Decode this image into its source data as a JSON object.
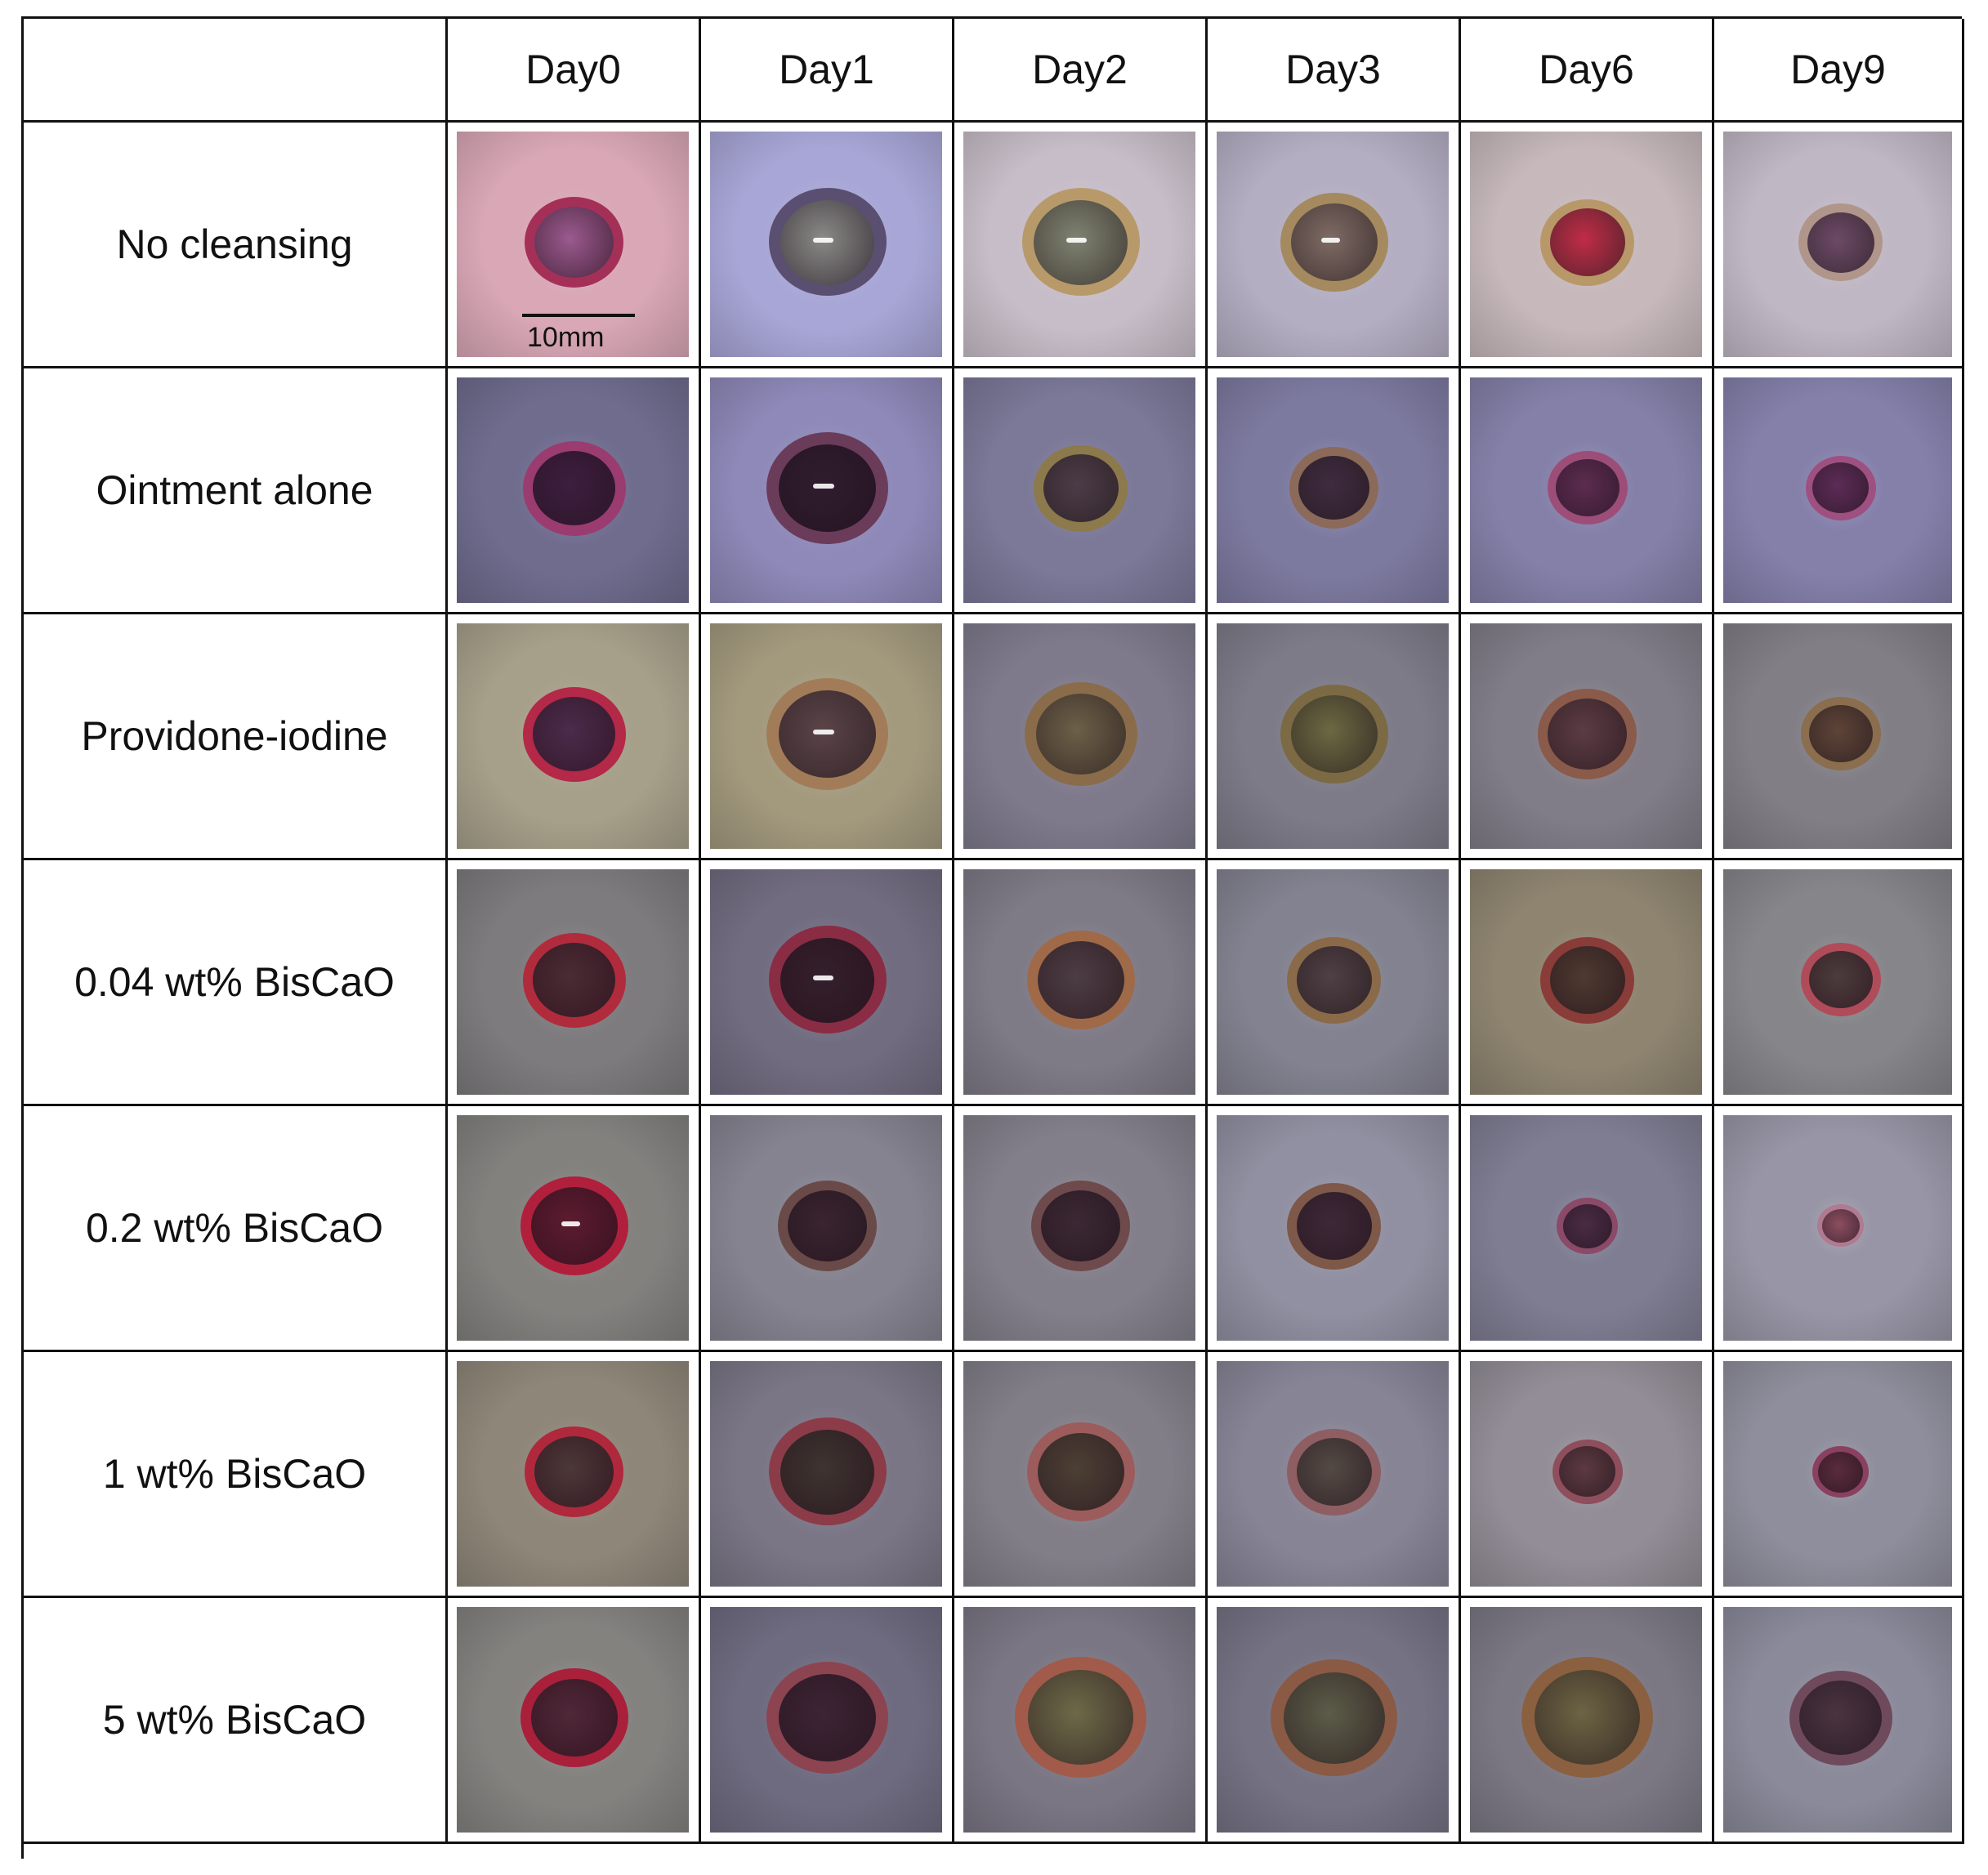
{
  "header": {
    "corner": "",
    "days": [
      "Day0",
      "Day1",
      "Day2",
      "Day3",
      "Day6",
      "Day9"
    ]
  },
  "rows": [
    {
      "label": "No cleansing",
      "photos": [
        {
          "bg": "#d9a7b6",
          "rim": "#a43058",
          "core": "#9a5a8e",
          "gloss": false,
          "size": 0.42
        },
        {
          "bg": "#a8a6d6",
          "rim": "#5a4f70",
          "core": "#8a8a86",
          "gloss": true,
          "size": 0.5
        },
        {
          "bg": "#c7bdc8",
          "rim": "#b89a6a",
          "core": "#7e8370",
          "gloss": true,
          "size": 0.5
        },
        {
          "bg": "#b4aec3",
          "rim": "#a48a5e",
          "core": "#7f6b64",
          "gloss": true,
          "size": 0.46
        },
        {
          "bg": "#c6b8bb",
          "rim": "#b89868",
          "core": "#c02c48",
          "gloss": false,
          "size": 0.4
        },
        {
          "bg": "#c0b7c4",
          "rim": "#b0968a",
          "core": "#6c4a66",
          "gloss": false,
          "size": 0.36
        }
      ]
    },
    {
      "label": "Ointment alone",
      "photos": [
        {
          "bg": "#6f6c8e",
          "rim": "#9a3c70",
          "core": "#3c1e3e",
          "gloss": false,
          "size": 0.44
        },
        {
          "bg": "#8e89b8",
          "rim": "#6a3c5a",
          "core": "#301c2e",
          "gloss": true,
          "size": 0.52
        },
        {
          "bg": "#7b7898",
          "rim": "#8c7a4c",
          "core": "#4c3c48",
          "gloss": false,
          "size": 0.4
        },
        {
          "bg": "#7d7aa0",
          "rim": "#8c6a5a",
          "core": "#3e2c40",
          "gloss": false,
          "size": 0.38
        },
        {
          "bg": "#8480a8",
          "rim": "#9c4e78",
          "core": "#5c2c50",
          "gloss": false,
          "size": 0.34
        },
        {
          "bg": "#8480aa",
          "rim": "#9e5080",
          "core": "#5c2c56",
          "gloss": false,
          "size": 0.3
        }
      ]
    },
    {
      "label": "Providone-iodine",
      "photos": [
        {
          "bg": "#a6a08a",
          "rim": "#b42848",
          "core": "#4a2c4c",
          "gloss": false,
          "size": 0.44
        },
        {
          "bg": "#a39a7e",
          "rim": "#a27c58",
          "core": "#5a4448",
          "gloss": true,
          "size": 0.52
        },
        {
          "bg": "#7e7a8c",
          "rim": "#8a6c4a",
          "core": "#6c6048",
          "gloss": false,
          "size": 0.48
        },
        {
          "bg": "#7d7b88",
          "rim": "#7c6a44",
          "core": "#6c6842",
          "gloss": false,
          "size": 0.46
        },
        {
          "bg": "#817d88",
          "rim": "#8a5a4a",
          "core": "#5c3c44",
          "gloss": false,
          "size": 0.42
        },
        {
          "bg": "#817e86",
          "rim": "#8a6e4e",
          "core": "#5e4438",
          "gloss": false,
          "size": 0.34
        }
      ]
    },
    {
      "label": "0.04 wt% BisCaO",
      "photos": [
        {
          "bg": "#7d7b7d",
          "rim": "#b02c3c",
          "core": "#4a2c34",
          "gloss": false,
          "size": 0.44
        },
        {
          "bg": "#716c80",
          "rim": "#8a2c44",
          "core": "#34202c",
          "gloss": true,
          "size": 0.5
        },
        {
          "bg": "#7e7a86",
          "rim": "#a06a48",
          "core": "#4c3c44",
          "gloss": false,
          "size": 0.46
        },
        {
          "bg": "#838290",
          "rim": "#8a6a48",
          "core": "#4e4044",
          "gloss": false,
          "size": 0.4
        },
        {
          "bg": "#8e8470",
          "rim": "#8a3c38",
          "core": "#4e3a30",
          "gloss": false,
          "size": 0.4
        },
        {
          "bg": "#86858a",
          "rim": "#b04c5a",
          "core": "#4c3c3c",
          "gloss": false,
          "size": 0.34
        }
      ]
    },
    {
      "label": "0.2 wt% BisCaO",
      "photos": [
        {
          "bg": "#83817e",
          "rim": "#b0203c",
          "core": "#5c1c30",
          "gloss": true,
          "size": 0.46
        },
        {
          "bg": "#858390",
          "rim": "#6a4a48",
          "core": "#3a2430",
          "gloss": false,
          "size": 0.42
        },
        {
          "bg": "#827f8a",
          "rim": "#6e4a4c",
          "core": "#3c2834",
          "gloss": false,
          "size": 0.42
        },
        {
          "bg": "#9190a2",
          "rim": "#7e5848",
          "core": "#3e2838",
          "gloss": false,
          "size": 0.4
        },
        {
          "bg": "#7f7d92",
          "rim": "#8a4a68",
          "core": "#4a2c44",
          "gloss": false,
          "size": 0.26
        },
        {
          "bg": "#9896a6",
          "rim": "#b07a90",
          "core": "#8c4e60",
          "gloss": false,
          "size": 0.2
        }
      ]
    },
    {
      "label": "1 wt% BisCaO",
      "photos": [
        {
          "bg": "#8e8678",
          "rim": "#b0283c",
          "core": "#4c3838",
          "gloss": false,
          "size": 0.42
        },
        {
          "bg": "#7a7686",
          "rim": "#8c3c48",
          "core": "#3e3430",
          "gloss": false,
          "size": 0.5
        },
        {
          "bg": "#817e88",
          "rim": "#9c5c5c",
          "core": "#4c4034",
          "gloss": false,
          "size": 0.46
        },
        {
          "bg": "#878496",
          "rim": "#8e5e62",
          "core": "#544a44",
          "gloss": false,
          "size": 0.4
        },
        {
          "bg": "#928d96",
          "rim": "#8e4e5c",
          "core": "#5c3a40",
          "gloss": false,
          "size": 0.3
        },
        {
          "bg": "#8f8e9c",
          "rim": "#8a4060",
          "core": "#5a2c3c",
          "gloss": false,
          "size": 0.24
        }
      ]
    },
    {
      "label": "5 wt% BisCaO",
      "photos": [
        {
          "bg": "#84827f",
          "rim": "#a8203a",
          "core": "#502838",
          "gloss": false,
          "size": 0.46
        },
        {
          "bg": "#6e6b80",
          "rim": "#8c4450",
          "core": "#3c2434",
          "gloss": false,
          "size": 0.52
        },
        {
          "bg": "#7a7684",
          "rim": "#a25a4a",
          "core": "#6c6a48",
          "gloss": false,
          "size": 0.56
        },
        {
          "bg": "#757284",
          "rim": "#8a5a44",
          "core": "#5c5c48",
          "gloss": false,
          "size": 0.54
        },
        {
          "bg": "#7b7884",
          "rim": "#8a6040",
          "core": "#6c6444",
          "gloss": false,
          "size": 0.56
        },
        {
          "bg": "#8b8a9a",
          "rim": "#6e4a5c",
          "core": "#4a3440",
          "gloss": false,
          "size": 0.44
        }
      ]
    }
  ],
  "scale_bar": {
    "label": "10mm"
  }
}
